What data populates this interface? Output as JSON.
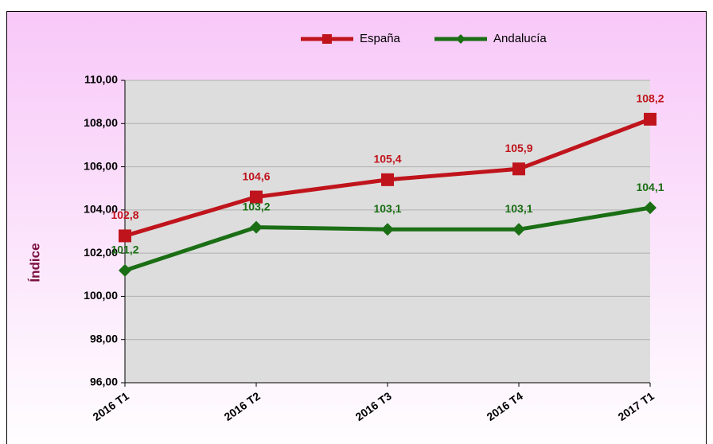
{
  "chart_data": {
    "type": "line",
    "y_label": "Índice",
    "categories": [
      "2016  T1",
      "2016  T2",
      "2016  T3",
      "2016  T4",
      "2017  T1"
    ],
    "series": [
      {
        "name": "España",
        "color": "#c0141c",
        "marker": "square",
        "values": [
          102.8,
          104.6,
          105.4,
          105.9,
          108.2
        ],
        "value_labels": [
          "102,8",
          "104,6",
          "105,4",
          "105,9",
          "108,2"
        ]
      },
      {
        "name": "Andalucía",
        "color": "#1a6e14",
        "marker": "diamond",
        "values": [
          101.2,
          103.2,
          103.1,
          103.1,
          104.1
        ],
        "value_labels": [
          "101,2",
          "103,2",
          "103,1",
          "103,1",
          "104,1"
        ]
      }
    ],
    "ylim": [
      96,
      110
    ],
    "yticks": [
      {
        "value": 96,
        "label": "96,00"
      },
      {
        "value": 98,
        "label": "98,00"
      },
      {
        "value": 100,
        "label": "100,00"
      },
      {
        "value": 102,
        "label": "102,00"
      },
      {
        "value": 104,
        "label": "104,00"
      },
      {
        "value": 106,
        "label": "106,00"
      },
      {
        "value": 108,
        "label": "108,00"
      },
      {
        "value": 110,
        "label": "110,00"
      }
    ],
    "grid": true,
    "legend": "top"
  }
}
